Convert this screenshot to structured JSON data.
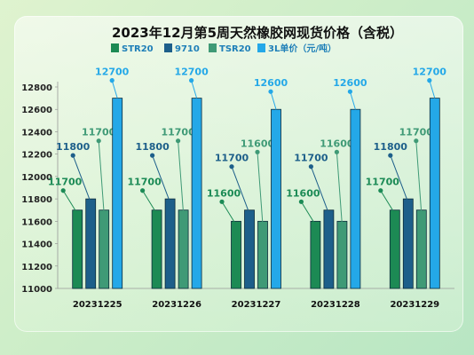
{
  "chart_data": {
    "type": "bar",
    "title": "2023年12月第5周天然橡胶网现货价格（含税）",
    "categories": [
      "20231225",
      "20231226",
      "20231227",
      "20231228",
      "20231229"
    ],
    "series": [
      {
        "name": "STR20",
        "color": "#1c8a54",
        "values": [
          11700,
          11700,
          11600,
          11600,
          11700
        ]
      },
      {
        "name": "9710",
        "color": "#1d5f8a",
        "values": [
          11800,
          11800,
          11700,
          11700,
          11800
        ]
      },
      {
        "name": "TSR20",
        "color": "#3f9a76",
        "values": [
          11700,
          11700,
          11600,
          11600,
          11700
        ]
      },
      {
        "name": "3L单价（元/吨）",
        "color": "#24a8e8",
        "values": [
          12700,
          12700,
          12600,
          12600,
          12700
        ]
      }
    ],
    "ylim": [
      11000,
      12800
    ],
    "yticks": [
      11000,
      11200,
      11400,
      11600,
      11800,
      12000,
      12200,
      12400,
      12600,
      12800
    ],
    "legend_position": "top",
    "data_labels": true
  }
}
